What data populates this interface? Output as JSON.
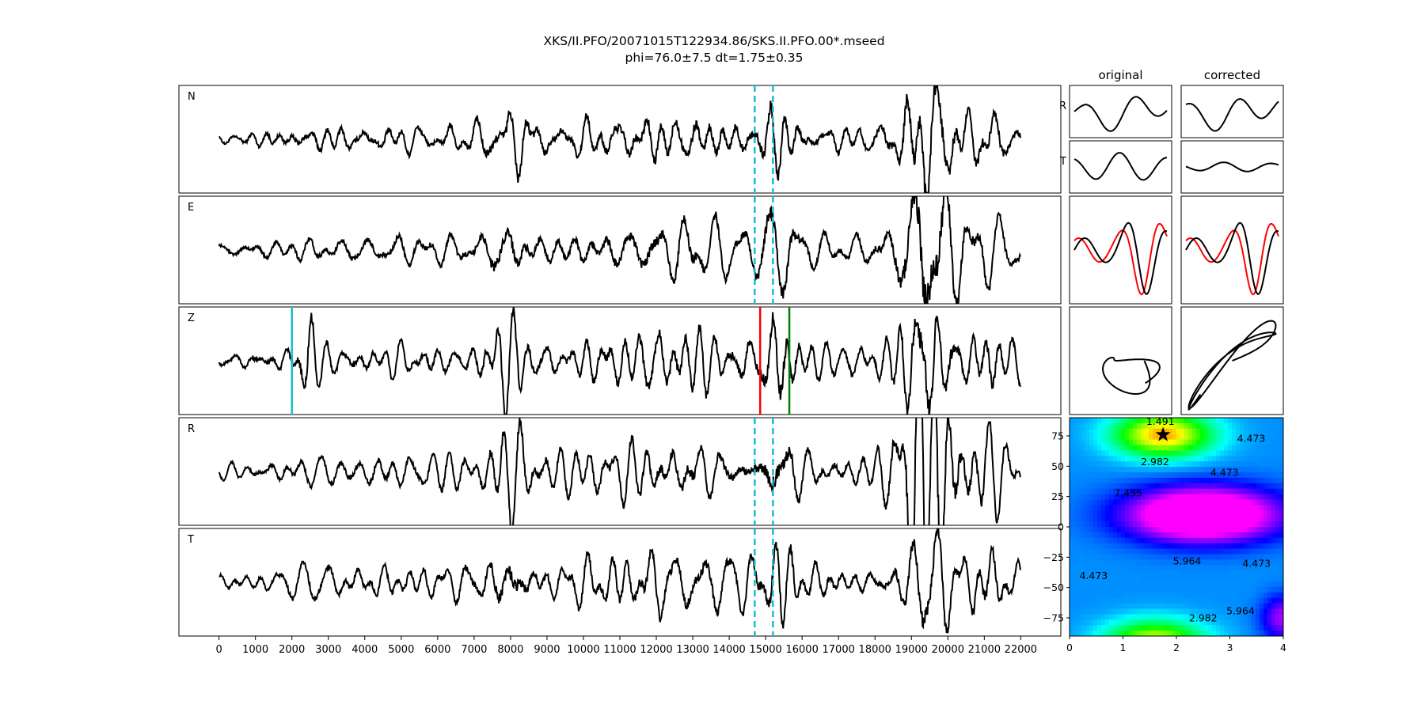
{
  "title": {
    "line1": "XKS/II.PFO/20071015T122934.86/SKS.II.PFO.00*.mseed",
    "line2": "phi=76.0±7.5 dt=1.75±0.35"
  },
  "traces": {
    "x_ticks": [
      "0",
      "1000",
      "2000",
      "3000",
      "4000",
      "5000",
      "6000",
      "7000",
      "8000",
      "9000",
      "10000",
      "11000",
      "12000",
      "13000",
      "14000",
      "15000",
      "16000",
      "17000",
      "18000",
      "19000",
      "20000",
      "21000",
      "22000"
    ],
    "xlim": [
      -1100,
      23100
    ],
    "panels": [
      {
        "id": "n",
        "label": "N",
        "window": "dashed-cyan"
      },
      {
        "id": "e",
        "label": "E",
        "window": "dashed-cyan"
      },
      {
        "id": "z",
        "label": "Z",
        "window": "picks"
      },
      {
        "id": "r",
        "label": "R",
        "window": "dashed-cyan"
      },
      {
        "id": "t",
        "label": "T",
        "window": "dashed-cyan"
      }
    ],
    "window_lines": [
      14700,
      15200
    ],
    "z_picks": {
      "cyan": 2000,
      "red": 14850,
      "green": 15650
    },
    "colors": {
      "trace": "#000000",
      "window": "#17becf",
      "red": "#ff0000",
      "green": "#008000"
    }
  },
  "side_panels": {
    "col_titles": [
      "original",
      "corrected"
    ],
    "row_labels": [
      "R",
      "T"
    ],
    "colors": {
      "trace": "#000000",
      "overlay": "#ff0000"
    }
  },
  "grid_search": {
    "y_ticks": [
      "75",
      "50",
      "25",
      "0",
      "−25",
      "−50",
      "−75"
    ],
    "x_ticks": [
      "0",
      "1",
      "2",
      "3",
      "4"
    ],
    "xlim": [
      0,
      4
    ],
    "ylim": [
      -90,
      90
    ],
    "best": {
      "dt": 1.75,
      "phi": 76.0
    },
    "contour_labels": [
      "1.491",
      "4.473",
      "2.982",
      "4.473",
      "7.455",
      "5.964",
      "4.473",
      "4.473",
      "2.982",
      "5.964"
    ]
  },
  "chart_data": [
    {
      "type": "line",
      "title": "XKS/II.PFO/20071015T122934.86/SKS.II.PFO.00*.mseed",
      "subtitle": "phi=76.0±7.5 dt=1.75±0.35",
      "series": [
        {
          "name": "N"
        },
        {
          "name": "E"
        },
        {
          "name": "Z"
        },
        {
          "name": "R"
        },
        {
          "name": "T"
        }
      ],
      "x": [
        0,
        22000
      ],
      "xlim": [
        -1100,
        23100
      ],
      "annotations": {
        "dashed_window": [
          14700,
          15200
        ],
        "z_picks": [
          2000,
          14850,
          15650
        ]
      }
    },
    {
      "type": "heatmap",
      "x_range": [
        0,
        4
      ],
      "y_range": [
        -90,
        90
      ],
      "best_fit": {
        "x": 1.75,
        "y": 76.0
      },
      "contour_levels": [
        1.491,
        2.982,
        4.473,
        5.964,
        7.455
      ]
    }
  ]
}
